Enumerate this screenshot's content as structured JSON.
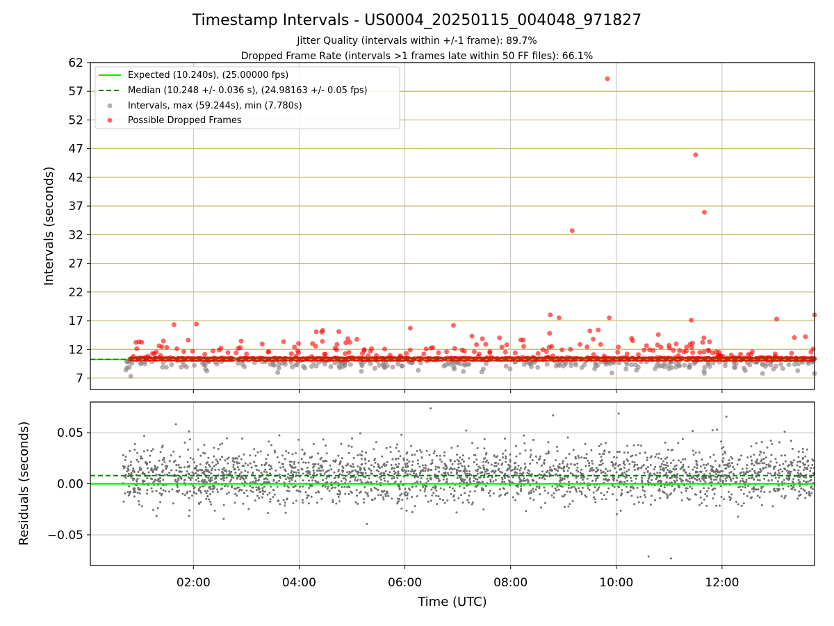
{
  "title": "Timestamp Intervals - US0004_20250115_004048_971827",
  "subtitle_1": "Jitter Quality (intervals within +/-1 frame): 89.7%",
  "subtitle_2": "Dropped Frame Rate (intervals >1 frames late within 50 FF files): 66.1%",
  "colors": {
    "expected": "#00ee00",
    "median": "#008000",
    "interval": "#808080",
    "dropped": "#ff0000",
    "hgrid": "#c8b464",
    "vgrid": "#bfbfbf",
    "residual": "#707070"
  },
  "legend": {
    "expected": "Expected (10.240s), (25.00000 fps)",
    "median": "Median (10.248 +/- 0.036 s), (24.98163 +/- 0.05 fps)",
    "intervals": "Intervals, max (59.244s), min (7.780s)",
    "dropped": "Possible Dropped Frames"
  },
  "chart_data": [
    {
      "type": "scatter",
      "panel": "intervals",
      "ylabel": "Intervals (seconds)",
      "ylim": [
        5.0,
        62.0
      ],
      "yticks": [
        "7",
        "12",
        "17",
        "22",
        "27",
        "32",
        "37",
        "42",
        "47",
        "52",
        "57",
        "62"
      ],
      "xlim": [
        "00:03",
        "13:45"
      ],
      "expected": 10.24,
      "median": 10.248,
      "grid": "on",
      "legend_position": "top-left",
      "dropped_outliers": [
        {
          "x": "01:38",
          "y": 16.3
        },
        {
          "x": "04:45",
          "y": 15.1
        },
        {
          "x": "08:45",
          "y": 18.0
        },
        {
          "x": "08:55",
          "y": 17.5
        },
        {
          "x": "09:10",
          "y": 32.7
        },
        {
          "x": "09:30",
          "y": 15.2
        },
        {
          "x": "09:50",
          "y": 59.2
        },
        {
          "x": "09:52",
          "y": 17.5
        },
        {
          "x": "11:25",
          "y": 17.1
        },
        {
          "x": "11:30",
          "y": 45.9
        },
        {
          "x": "11:40",
          "y": 35.9
        },
        {
          "x": "13:02",
          "y": 17.3
        },
        {
          "x": "13:45",
          "y": 18.0
        }
      ],
      "interval_outliers": [
        {
          "x": "09:55",
          "y": 7.9
        },
        {
          "x": "11:40",
          "y": 7.8
        },
        {
          "x": "13:45",
          "y": 7.8
        }
      ]
    },
    {
      "type": "scatter",
      "panel": "residuals",
      "xlabel": "Time (UTC)",
      "ylabel": "Residuals (seconds)",
      "ylim": [
        -0.08,
        0.08
      ],
      "yticks": [
        "−0.05",
        "0.00",
        "0.05"
      ],
      "xticks": [
        "02:00",
        "04:00",
        "06:00",
        "08:00",
        "10:00",
        "12:00"
      ],
      "expected_residual": 0.0,
      "median_residual": 0.008,
      "residual_spread": 0.036,
      "grid": "on"
    }
  ]
}
